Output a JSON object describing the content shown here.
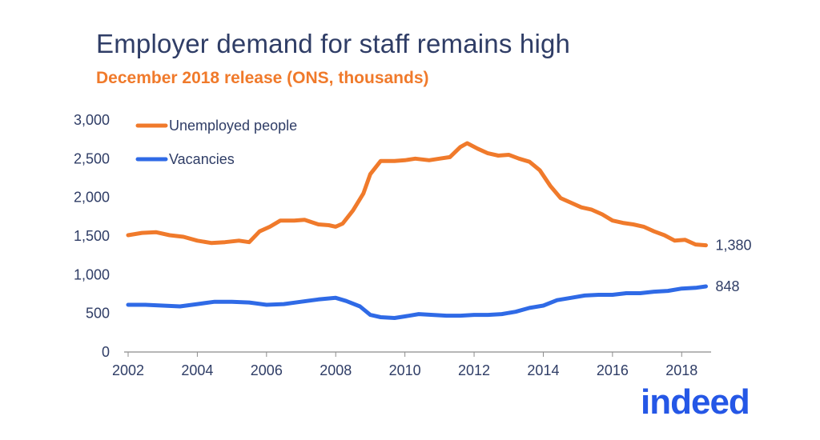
{
  "header": {
    "title": "Employer demand for staff remains high",
    "subtitle": "December 2018 release (ONS, thousands)"
  },
  "logo": {
    "text": "indeed",
    "color": "#2557e6"
  },
  "colors": {
    "unemployed": "#f07a2b",
    "vacancies": "#2f6ae6",
    "text": "#2f3d66",
    "axis": "#8c8c8c"
  },
  "chart_data": {
    "type": "line",
    "title": "Employer demand for staff remains high",
    "subtitle": "December 2018 release (ONS, thousands)",
    "xlabel": "",
    "ylabel": "",
    "xlim": [
      2002,
      2018.85
    ],
    "ylim": [
      0,
      3000
    ],
    "x_ticks": [
      "2002",
      "2004",
      "2006",
      "2008",
      "2010",
      "2012",
      "2014",
      "2016",
      "2018"
    ],
    "y_ticks": [
      "0",
      "500",
      "1,000",
      "1,500",
      "2,000",
      "2,500",
      "3,000"
    ],
    "grid": false,
    "legend": "top-left",
    "series": [
      {
        "name": "Unemployed people",
        "color": "#f07a2b",
        "end_label": "1,380",
        "points": [
          [
            2002.0,
            1510
          ],
          [
            2002.4,
            1540
          ],
          [
            2002.8,
            1550
          ],
          [
            2003.2,
            1510
          ],
          [
            2003.6,
            1490
          ],
          [
            2004.0,
            1440
          ],
          [
            2004.4,
            1410
          ],
          [
            2004.8,
            1420
          ],
          [
            2005.2,
            1440
          ],
          [
            2005.5,
            1420
          ],
          [
            2005.8,
            1560
          ],
          [
            2006.1,
            1620
          ],
          [
            2006.4,
            1700
          ],
          [
            2006.8,
            1700
          ],
          [
            2007.1,
            1710
          ],
          [
            2007.5,
            1650
          ],
          [
            2007.8,
            1640
          ],
          [
            2008.0,
            1620
          ],
          [
            2008.2,
            1660
          ],
          [
            2008.5,
            1830
          ],
          [
            2008.8,
            2050
          ],
          [
            2009.0,
            2300
          ],
          [
            2009.3,
            2470
          ],
          [
            2009.7,
            2470
          ],
          [
            2010.0,
            2480
          ],
          [
            2010.3,
            2500
          ],
          [
            2010.7,
            2480
          ],
          [
            2011.0,
            2500
          ],
          [
            2011.3,
            2520
          ],
          [
            2011.6,
            2650
          ],
          [
            2011.8,
            2700
          ],
          [
            2012.1,
            2630
          ],
          [
            2012.4,
            2570
          ],
          [
            2012.7,
            2540
          ],
          [
            2013.0,
            2550
          ],
          [
            2013.3,
            2500
          ],
          [
            2013.6,
            2460
          ],
          [
            2013.9,
            2350
          ],
          [
            2014.2,
            2150
          ],
          [
            2014.5,
            1990
          ],
          [
            2014.8,
            1930
          ],
          [
            2015.1,
            1870
          ],
          [
            2015.4,
            1840
          ],
          [
            2015.7,
            1780
          ],
          [
            2016.0,
            1700
          ],
          [
            2016.3,
            1670
          ],
          [
            2016.6,
            1650
          ],
          [
            2016.9,
            1620
          ],
          [
            2017.2,
            1560
          ],
          [
            2017.5,
            1510
          ],
          [
            2017.8,
            1440
          ],
          [
            2018.1,
            1450
          ],
          [
            2018.4,
            1390
          ],
          [
            2018.7,
            1380
          ]
        ]
      },
      {
        "name": "Vacancies",
        "color": "#2f6ae6",
        "end_label": "848",
        "points": [
          [
            2002.0,
            610
          ],
          [
            2002.5,
            610
          ],
          [
            2003.0,
            600
          ],
          [
            2003.5,
            590
          ],
          [
            2004.0,
            620
          ],
          [
            2004.5,
            650
          ],
          [
            2005.0,
            650
          ],
          [
            2005.5,
            640
          ],
          [
            2006.0,
            610
          ],
          [
            2006.5,
            620
          ],
          [
            2007.0,
            650
          ],
          [
            2007.5,
            680
          ],
          [
            2008.0,
            700
          ],
          [
            2008.3,
            660
          ],
          [
            2008.7,
            590
          ],
          [
            2009.0,
            480
          ],
          [
            2009.3,
            450
          ],
          [
            2009.7,
            440
          ],
          [
            2010.0,
            460
          ],
          [
            2010.4,
            490
          ],
          [
            2010.8,
            480
          ],
          [
            2011.2,
            470
          ],
          [
            2011.6,
            470
          ],
          [
            2012.0,
            480
          ],
          [
            2012.4,
            480
          ],
          [
            2012.8,
            490
          ],
          [
            2013.2,
            520
          ],
          [
            2013.6,
            570
          ],
          [
            2014.0,
            600
          ],
          [
            2014.4,
            670
          ],
          [
            2014.8,
            700
          ],
          [
            2015.2,
            730
          ],
          [
            2015.6,
            740
          ],
          [
            2016.0,
            740
          ],
          [
            2016.4,
            760
          ],
          [
            2016.8,
            760
          ],
          [
            2017.2,
            780
          ],
          [
            2017.6,
            790
          ],
          [
            2018.0,
            820
          ],
          [
            2018.4,
            830
          ],
          [
            2018.7,
            848
          ]
        ]
      }
    ]
  }
}
